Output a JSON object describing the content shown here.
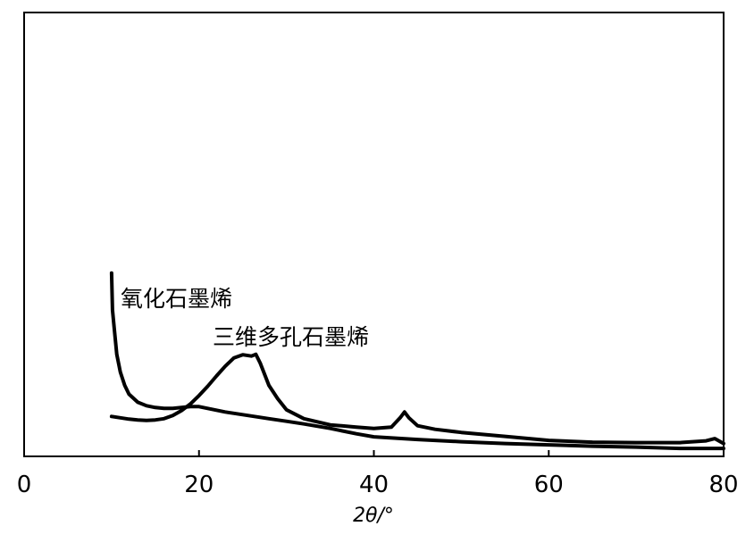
{
  "chart_data": {
    "type": "line",
    "xlabel": "2θ/°",
    "ylabel": "",
    "xlim": [
      0,
      80
    ],
    "ylim": [
      0,
      1
    ],
    "x_ticks": [
      0,
      20,
      40,
      60,
      80
    ],
    "grid": false,
    "legend": "inline labels",
    "series": [
      {
        "name": "氧化石墨烯",
        "color": "#000000",
        "x": [
          10,
          10.1,
          10.3,
          10.6,
          11,
          11.5,
          12,
          13,
          14,
          15,
          16,
          17,
          18,
          19,
          20,
          21,
          22,
          23,
          24,
          25,
          26,
          27,
          28,
          30,
          32,
          35,
          38,
          40,
          45,
          50,
          55,
          60,
          65,
          70,
          75,
          78,
          80
        ],
        "y": [
          0.413,
          0.33,
          0.29,
          0.23,
          0.19,
          0.16,
          0.14,
          0.122,
          0.114,
          0.11,
          0.108,
          0.108,
          0.11,
          0.112,
          0.112,
          0.108,
          0.104,
          0.1,
          0.097,
          0.094,
          0.091,
          0.088,
          0.085,
          0.079,
          0.073,
          0.063,
          0.051,
          0.044,
          0.038,
          0.033,
          0.029,
          0.026,
          0.023,
          0.021,
          0.018,
          0.018,
          0.018
        ]
      },
      {
        "name": "三维多孔石墨烯",
        "color": "#000000",
        "x": [
          10,
          11,
          12,
          13,
          14,
          15,
          16,
          17,
          18,
          19,
          20,
          21,
          22,
          23,
          24,
          25,
          26,
          26.5,
          27,
          28,
          29,
          30,
          32,
          35,
          38,
          40,
          42,
          43,
          43.5,
          44,
          45,
          47,
          50,
          55,
          60,
          65,
          70,
          75,
          78,
          79,
          80
        ],
        "y": [
          0.09,
          0.087,
          0.084,
          0.082,
          0.081,
          0.082,
          0.085,
          0.092,
          0.103,
          0.118,
          0.137,
          0.158,
          0.181,
          0.203,
          0.222,
          0.229,
          0.226,
          0.23,
          0.21,
          0.16,
          0.13,
          0.105,
          0.085,
          0.071,
          0.066,
          0.063,
          0.066,
          0.087,
          0.1,
          0.087,
          0.069,
          0.061,
          0.054,
          0.045,
          0.036,
          0.032,
          0.031,
          0.031,
          0.035,
          0.04,
          0.029
        ]
      }
    ],
    "annotations": [
      {
        "text": "氧化石墨烯",
        "series": 0
      },
      {
        "text": "三维多孔石墨烯",
        "series": 1
      }
    ]
  }
}
